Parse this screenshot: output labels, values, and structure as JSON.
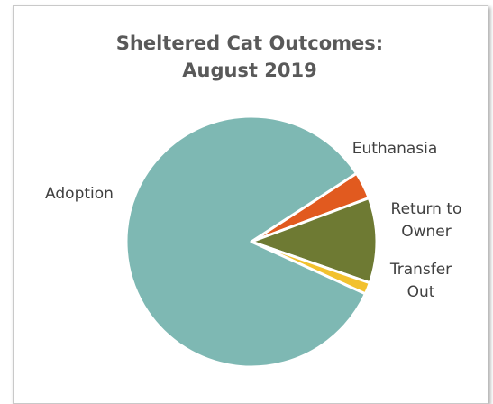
{
  "chart_data": {
    "type": "pie",
    "title_lines": [
      "Sheltered Cat Outcomes:",
      "August 2019"
    ],
    "slices": [
      {
        "label_lines": [
          "Euthanasia"
        ],
        "value": 3.5,
        "color": "#E15A1F"
      },
      {
        "label_lines": [
          "Return to",
          "Owner"
        ],
        "value": 11,
        "color": "#6E7A33"
      },
      {
        "label_lines": [
          "Transfer",
          "Out"
        ],
        "value": 1.5,
        "color": "#F2C12E"
      },
      {
        "label_lines": [
          "Adoption"
        ],
        "value": 84,
        "color": "#7EB8B3"
      }
    ],
    "start_angle_deg": 57,
    "direction": "clockwise"
  }
}
